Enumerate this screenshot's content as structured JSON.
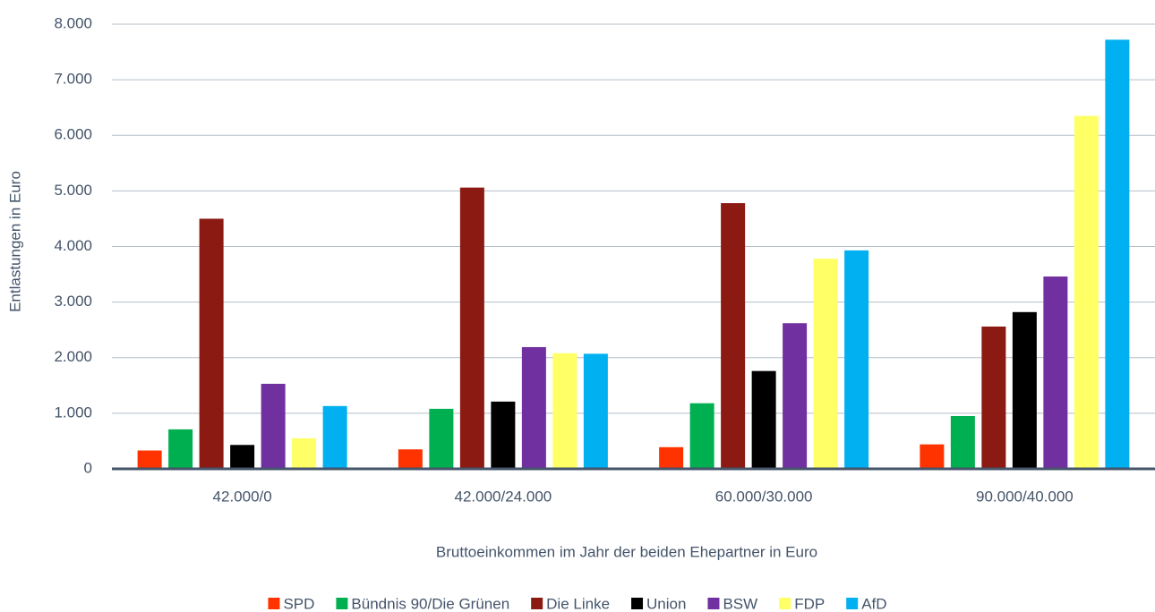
{
  "chart_data": {
    "type": "bar",
    "x_label": "Bruttoeinkommen im Jahr der beiden Ehepartner in Euro",
    "y_label": "Entlastungen in Euro",
    "categories": [
      "42.000/0",
      "42.000/24.000",
      "60.000/30.000",
      "90.000/40.000"
    ],
    "series": [
      {
        "name": "SPD",
        "color": "#ff3300",
        "values": [
          330,
          350,
          390,
          440
        ]
      },
      {
        "name": "Bündnis 90/Die Grünen",
        "color": "#00b050",
        "values": [
          710,
          1080,
          1180,
          950
        ]
      },
      {
        "name": "Die Linke",
        "color": "#8b1a13",
        "values": [
          4500,
          5060,
          4780,
          2560
        ]
      },
      {
        "name": "Union",
        "color": "#000000",
        "values": [
          430,
          1210,
          1760,
          2820
        ]
      },
      {
        "name": "BSW",
        "color": "#7030a0",
        "values": [
          1530,
          2190,
          2620,
          3460
        ]
      },
      {
        "name": "FDP",
        "color": "#ffff66",
        "values": [
          550,
          2080,
          3780,
          6350
        ]
      },
      {
        "name": "AfD",
        "color": "#00b0f0",
        "values": [
          1130,
          2070,
          3930,
          7720
        ]
      }
    ],
    "ylim": [
      0,
      8000
    ],
    "yticks": [
      0,
      {
        "value": 1000,
        "label": "1.000"
      },
      {
        "value": 2000,
        "label": "2.000"
      },
      {
        "value": 3000,
        "label": "3.000"
      },
      {
        "value": 4000,
        "label": "4.000"
      },
      {
        "value": 5000,
        "label": "5.000"
      },
      {
        "value": 6000,
        "label": "6.000"
      },
      {
        "value": 7000,
        "label": "7.000"
      },
      {
        "value": 8000,
        "label": "8.000"
      }
    ],
    "grid": true,
    "legend": "bottom"
  }
}
